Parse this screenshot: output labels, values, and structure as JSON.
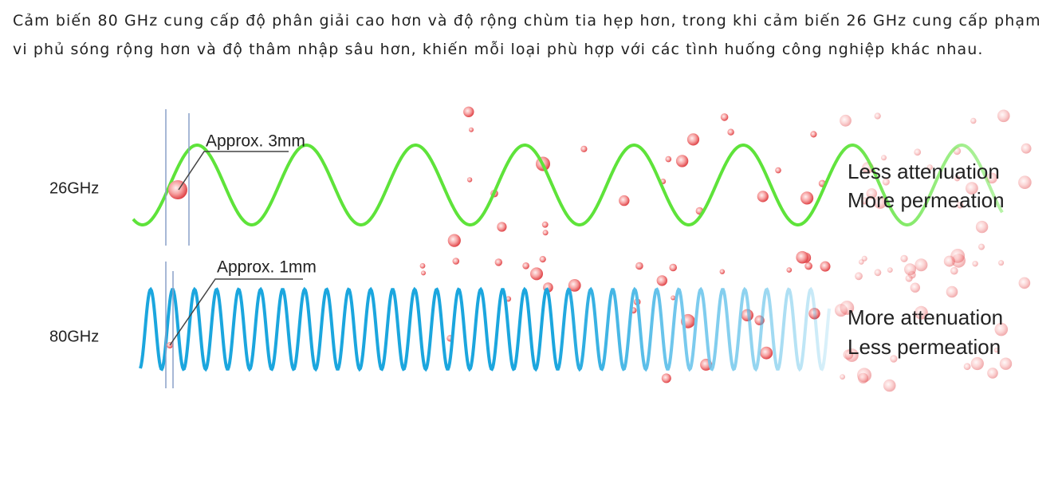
{
  "paragraph": "Cảm biến 80 GHz cung cấp độ phân giải cao hơn và độ rộng chùm tia hẹp hơn, trong khi cảm biến 26 GHz cung cấp phạm vi phủ sóng rộng hơn và độ thâm nhập sâu hơn, khiến mỗi loại phù hợp với các tình huống công nghiệp khác nhau.",
  "figure": {
    "low": {
      "label": "26GHz",
      "wavelength": "Approx. 3mm",
      "notes": [
        "Less attenuation",
        "More permeation"
      ]
    },
    "high": {
      "label": "80GHz",
      "wavelength": "Approx. 1mm",
      "notes": [
        "More attenuation",
        "Less permeation"
      ]
    }
  }
}
